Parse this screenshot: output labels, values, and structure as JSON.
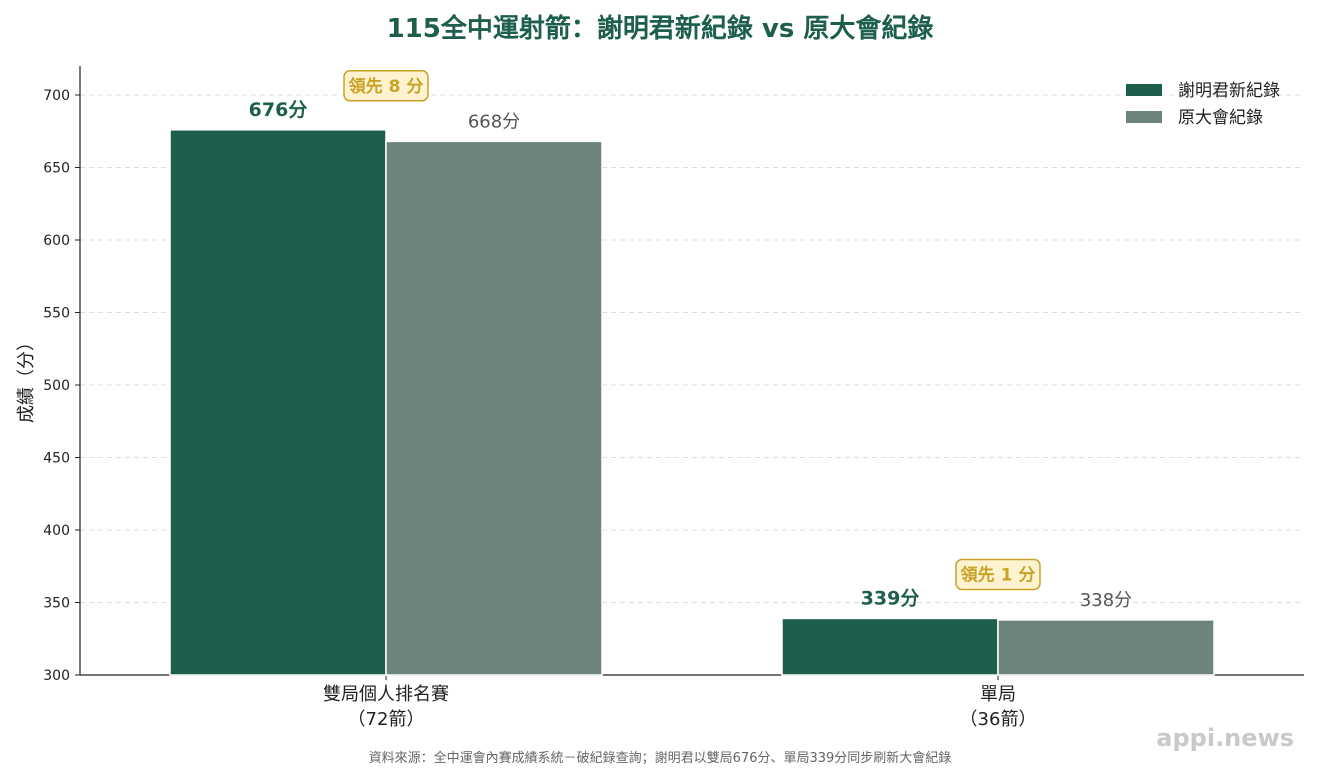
{
  "colors": {
    "record_new": "#1d5e4d",
    "record_old": "#6d847c",
    "lead": "#c9a227",
    "lead_bg": "#fdf3d0",
    "title": "#1d5e4d"
  },
  "chart_data": {
    "type": "bar",
    "title": "115全中運射箭：謝明君新紀錄 vs 原大會紀錄",
    "ylabel": "成績（分）",
    "xlabel": "",
    "ylim": [
      300,
      720
    ],
    "yticks": [
      300,
      350,
      400,
      450,
      500,
      550,
      600,
      650,
      700
    ],
    "grid": true,
    "legend_position": "top-right",
    "categories": [
      {
        "line1": "雙局個人排名賽",
        "line2": "（72箭）"
      },
      {
        "line1": "單局",
        "line2": "（36箭）"
      }
    ],
    "series": [
      {
        "name": "謝明君新紀錄",
        "color": "#1d5e4d",
        "values": [
          676,
          339
        ],
        "labels": [
          "676分",
          "339分"
        ]
      },
      {
        "name": "原大會紀錄",
        "color": "#6d847c",
        "values": [
          668,
          338
        ],
        "labels": [
          "668分",
          "338分"
        ]
      }
    ],
    "annotations": [
      "領先 8 分",
      "領先 1 分"
    ]
  },
  "source_note": "資料來源：全中運會內賽成績系統－破紀錄查詢；謝明君以雙局676分、單局339分同步刷新大會紀錄",
  "watermark": "appi.news"
}
